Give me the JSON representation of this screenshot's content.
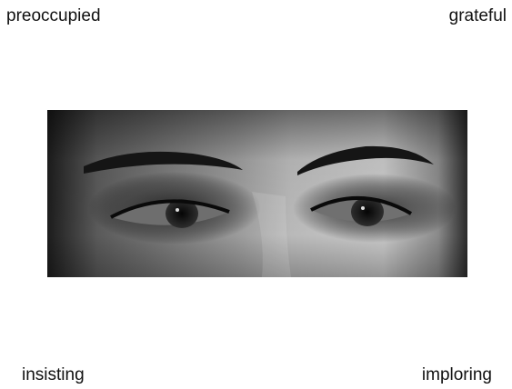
{
  "options": {
    "top_left": "preoccupied",
    "top_right": "grateful",
    "bottom_left": "insisting",
    "bottom_right": "imploring"
  },
  "photo": {
    "subject": "grayscale close-up of a woman's eyes looking to the side"
  }
}
